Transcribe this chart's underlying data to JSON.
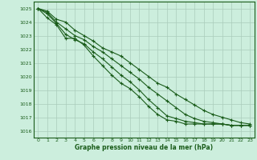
{
  "background_color": "#cceedd",
  "plot_background": "#cceedd",
  "grid_color": "#aaccbb",
  "line_color": "#1a5c1a",
  "xlabel": "Graphe pression niveau de la mer (hPa)",
  "ylim": [
    1015.5,
    1025.5
  ],
  "xlim": [
    -0.5,
    23.5
  ],
  "yticks": [
    1016,
    1017,
    1018,
    1019,
    1020,
    1021,
    1022,
    1023,
    1024,
    1025
  ],
  "xticks": [
    0,
    1,
    2,
    3,
    4,
    5,
    6,
    7,
    8,
    9,
    10,
    11,
    12,
    13,
    14,
    15,
    16,
    17,
    18,
    19,
    20,
    21,
    22,
    23
  ],
  "series": [
    [
      1025.0,
      1024.8,
      1024.2,
      1024.0,
      1023.4,
      1023.0,
      1022.6,
      1022.1,
      1021.8,
      1021.5,
      1021.0,
      1020.5,
      1020.0,
      1019.5,
      1019.2,
      1018.7,
      1018.3,
      1017.9,
      1017.5,
      1017.2,
      1017.0,
      1016.8,
      1016.6,
      1016.5
    ],
    [
      1025.0,
      1024.7,
      1024.0,
      1023.5,
      1023.0,
      1022.7,
      1022.2,
      1021.8,
      1021.3,
      1020.8,
      1020.3,
      1019.8,
      1019.2,
      1018.7,
      1018.2,
      1017.7,
      1017.2,
      1016.9,
      1016.7,
      1016.6,
      1016.5,
      1016.4,
      1016.4,
      1016.4
    ],
    [
      1025.0,
      1024.6,
      1023.9,
      1023.1,
      1022.7,
      1022.4,
      1021.8,
      1021.3,
      1020.7,
      1020.1,
      1019.6,
      1019.0,
      1018.3,
      1017.7,
      1017.1,
      1016.9,
      1016.7,
      1016.6,
      1016.5,
      1016.5,
      1016.5,
      1016.4,
      1016.4,
      1016.4
    ],
    [
      1025.0,
      1024.3,
      1023.8,
      1022.8,
      1022.8,
      1022.3,
      1021.5,
      1020.8,
      1020.1,
      1019.5,
      1019.1,
      1018.5,
      1017.8,
      1017.2,
      1016.8,
      1016.7,
      1016.5,
      1016.5,
      1016.5,
      1016.5,
      1016.5,
      1016.4,
      1016.4,
      1016.4
    ]
  ]
}
